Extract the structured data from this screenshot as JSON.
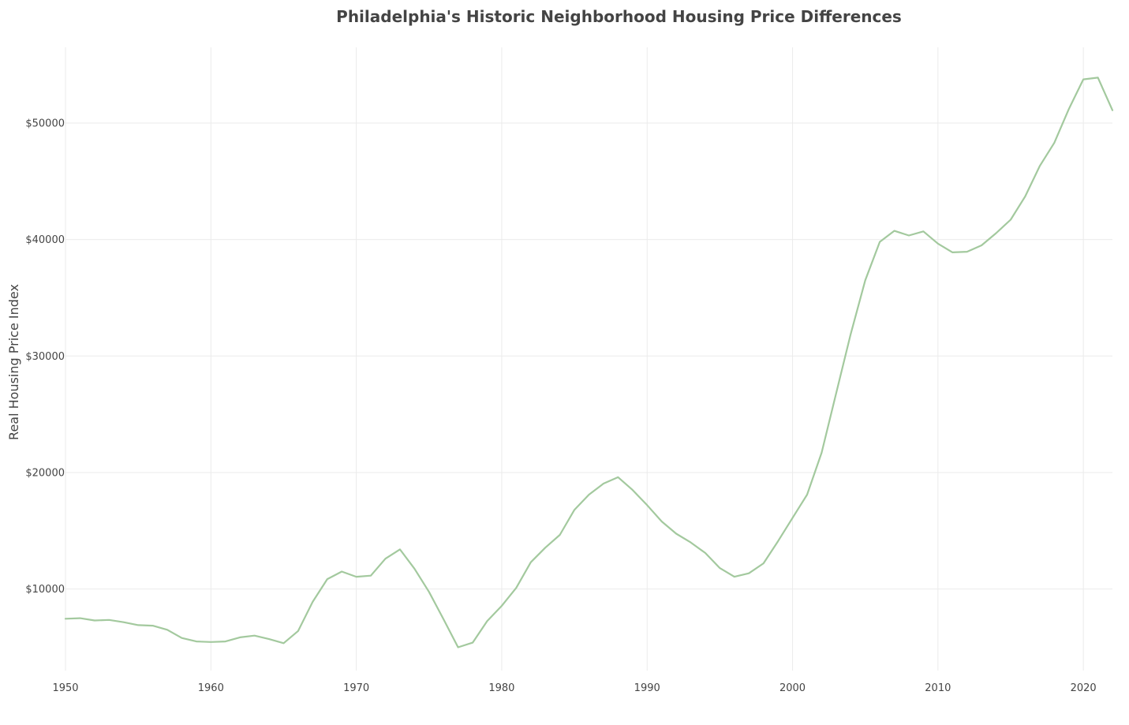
{
  "chart_data": {
    "type": "line",
    "title": "Philadelphia's Historic Neighborhood Housing Price Differences",
    "xlabel": "",
    "ylabel": "Real Housing Price Index",
    "xlim": [
      1950,
      2022
    ],
    "ylim": [
      3000,
      56500
    ],
    "x_ticks": [
      1950,
      1960,
      1970,
      1980,
      1990,
      2000,
      2010,
      2020
    ],
    "y_ticks": [
      10000,
      20000,
      30000,
      40000,
      50000
    ],
    "y_tick_labels": [
      "$10000",
      "$20000",
      "$30000",
      "$40000",
      "$50000"
    ],
    "grid": true,
    "line_color": "#a3c99e",
    "series": [
      {
        "x": [
          1950,
          1951,
          1952,
          1953,
          1954,
          1955,
          1956,
          1957,
          1958,
          1959,
          1960,
          1961,
          1962,
          1963,
          1964,
          1965,
          1966,
          1967,
          1968,
          1969,
          1970,
          1971,
          1972,
          1973,
          1974,
          1975,
          1976,
          1977,
          1978,
          1979,
          1980,
          1981,
          1982,
          1983,
          1984,
          1985,
          1986,
          1987,
          1988,
          1989,
          1990,
          1991,
          1992,
          1993,
          1994,
          1995,
          1996,
          1997,
          1998,
          1999,
          2000,
          2001,
          2002,
          2003,
          2004,
          2005,
          2006,
          2007,
          2008,
          2009,
          2010,
          2011,
          2012,
          2013,
          2014,
          2015,
          2016,
          2017,
          2018,
          2019,
          2020,
          2021,
          2022
        ],
        "values": [
          7450,
          7500,
          7300,
          7350,
          7150,
          6900,
          6850,
          6500,
          5800,
          5500,
          5450,
          5500,
          5850,
          6000,
          5700,
          5350,
          6400,
          8900,
          10850,
          11500,
          11050,
          11150,
          12600,
          13400,
          11750,
          9750,
          7400,
          5000,
          5400,
          7250,
          8550,
          10100,
          12300,
          13550,
          14650,
          16800,
          18100,
          19050,
          19600,
          18500,
          17200,
          15800,
          14750,
          14000,
          13100,
          11800,
          11050,
          11350,
          12200,
          14100,
          16100,
          18100,
          21700,
          26800,
          31900,
          36500,
          39800,
          40750,
          40350,
          40700,
          39650,
          38900,
          38950,
          39500,
          40550,
          41700,
          43700,
          46300,
          48300,
          51200,
          53750,
          53900,
          51100
        ]
      }
    ]
  }
}
